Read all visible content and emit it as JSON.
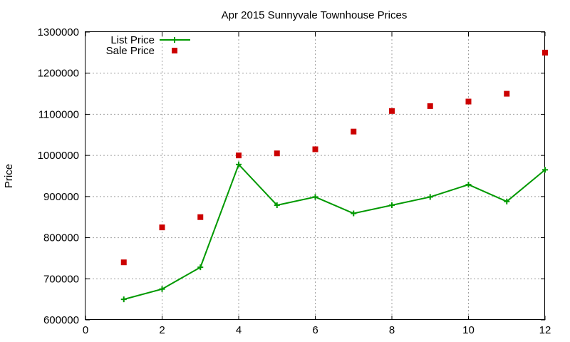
{
  "chart_data": {
    "type": "line",
    "title": "Apr 2015 Sunnyvale Townhouse Prices",
    "xlabel": "",
    "ylabel": "Price",
    "xlim": [
      0,
      12
    ],
    "ylim": [
      600000,
      1300000
    ],
    "x_ticks": [
      0,
      2,
      4,
      6,
      8,
      10,
      12
    ],
    "y_ticks": [
      600000,
      700000,
      800000,
      900000,
      1000000,
      1100000,
      1200000,
      1300000
    ],
    "grid": true,
    "legend_position": "top-left",
    "series": [
      {
        "name": "List Price",
        "style": "line+points",
        "color": "#009900",
        "x": [
          1,
          2,
          3,
          4,
          5,
          6,
          7,
          8,
          9,
          10,
          11,
          12
        ],
        "y": [
          650000,
          675000,
          728000,
          978000,
          879000,
          899000,
          859000,
          879000,
          899000,
          929000,
          888000,
          965000
        ]
      },
      {
        "name": "Sale Price",
        "style": "points",
        "color": "#cc0000",
        "x": [
          1,
          2,
          3,
          4,
          5,
          6,
          7,
          8,
          9,
          10,
          11,
          12
        ],
        "y": [
          740000,
          825000,
          850000,
          1000000,
          1005000,
          1015000,
          1058000,
          1108000,
          1120000,
          1131000,
          1150000,
          1250000
        ]
      }
    ]
  }
}
